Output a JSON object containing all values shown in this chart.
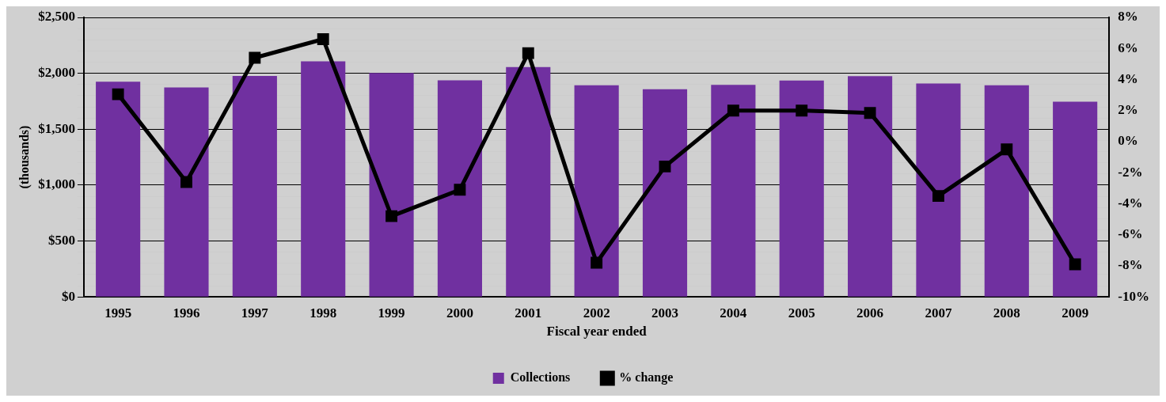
{
  "chart_data": {
    "type": "bar",
    "xlabel": "Fiscal year ended",
    "ylabel": "(thousands)",
    "categories": [
      "1995",
      "1996",
      "1997",
      "1998",
      "1999",
      "2000",
      "2001",
      "2002",
      "2003",
      "2004",
      "2005",
      "2006",
      "2007",
      "2008",
      "2009"
    ],
    "series": [
      {
        "name": "Collections",
        "color": "#7030a0",
        "values": [
          1925,
          1873,
          1977,
          2107,
          2003,
          1938,
          2055,
          1893,
          1857,
          1896,
          1935,
          1974,
          1909,
          1893,
          1747
        ]
      },
      {
        "name": "% change",
        "type": "line",
        "axis": "y2",
        "color": "#000000",
        "values": [
          3.05,
          -2.6,
          5.4,
          6.6,
          -4.8,
          -3.1,
          5.7,
          -7.8,
          -1.6,
          2.0,
          2.0,
          1.85,
          -3.5,
          -0.5,
          -7.9
        ]
      }
    ],
    "ylim": [
      0,
      2500
    ],
    "yticks": [
      {
        "value": 0,
        "label": "$0"
      },
      {
        "value": 100,
        "label": null
      },
      {
        "value": 200,
        "label": null
      },
      {
        "value": 300,
        "label": null
      },
      {
        "value": 400,
        "label": null
      },
      {
        "value": 500,
        "label": "$500"
      },
      {
        "value": 600,
        "label": null
      },
      {
        "value": 700,
        "label": null
      },
      {
        "value": 800,
        "label": null
      },
      {
        "value": 900,
        "label": null
      },
      {
        "value": 1000,
        "label": "$1,000"
      },
      {
        "value": 1100,
        "label": null
      },
      {
        "value": 1200,
        "label": null
      },
      {
        "value": 1300,
        "label": null
      },
      {
        "value": 1400,
        "label": null
      },
      {
        "value": 1500,
        "label": "$1,500"
      },
      {
        "value": 1600,
        "label": null
      },
      {
        "value": 1700,
        "label": null
      },
      {
        "value": 1800,
        "label": null
      },
      {
        "value": 1900,
        "label": null
      },
      {
        "value": 2000,
        "label": "$2,000"
      },
      {
        "value": 2100,
        "label": null
      },
      {
        "value": 2200,
        "label": null
      },
      {
        "value": 2300,
        "label": null
      },
      {
        "value": 2400,
        "label": null
      },
      {
        "value": 2500,
        "label": "$2,500"
      }
    ],
    "y2lim": [
      -10,
      8
    ],
    "y2ticks": [
      {
        "value": -10,
        "label": "-10%"
      },
      {
        "value": -8,
        "label": "-8%"
      },
      {
        "value": -6,
        "label": "-6%"
      },
      {
        "value": -4,
        "label": "-4%"
      },
      {
        "value": -2,
        "label": "-2%"
      },
      {
        "value": 0,
        "label": "0%"
      },
      {
        "value": 2,
        "label": "2%"
      },
      {
        "value": 4,
        "label": "4%"
      },
      {
        "value": 6,
        "label": "6%"
      },
      {
        "value": 8,
        "label": "8%"
      }
    ],
    "grid": "y",
    "legend": "bottom",
    "marker": "square",
    "line_style": "solid"
  }
}
